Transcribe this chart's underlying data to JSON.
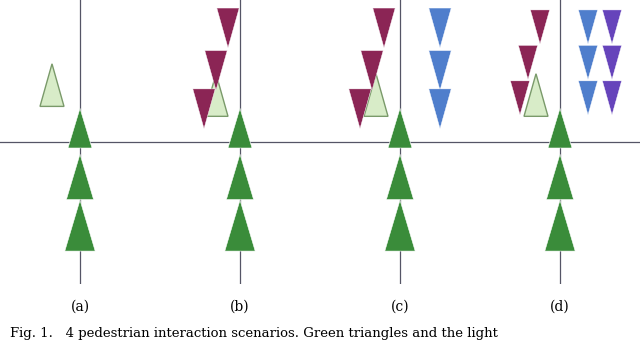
{
  "fig_width": 6.4,
  "fig_height": 3.46,
  "dpi": 100,
  "bg_color": "#c5d9f0",
  "white_color": "#ffffff",
  "axis_color": "#555566",
  "green_color": "#3a8c3a",
  "crimson_color": "#8b2555",
  "light_green_color": "#d8ecc8",
  "light_green_edge": "#7a9a6a",
  "blue_color": "#4f7ecc",
  "purple_color": "#6644bb",
  "caption": "Fig. 1.   4 pedestrian interaction scenarios. Green triangles and the light",
  "caption_fontsize": 9.5,
  "panel_labels": [
    "(a)",
    "(b)",
    "(c)",
    "(d)"
  ],
  "label_fontsize": 10
}
